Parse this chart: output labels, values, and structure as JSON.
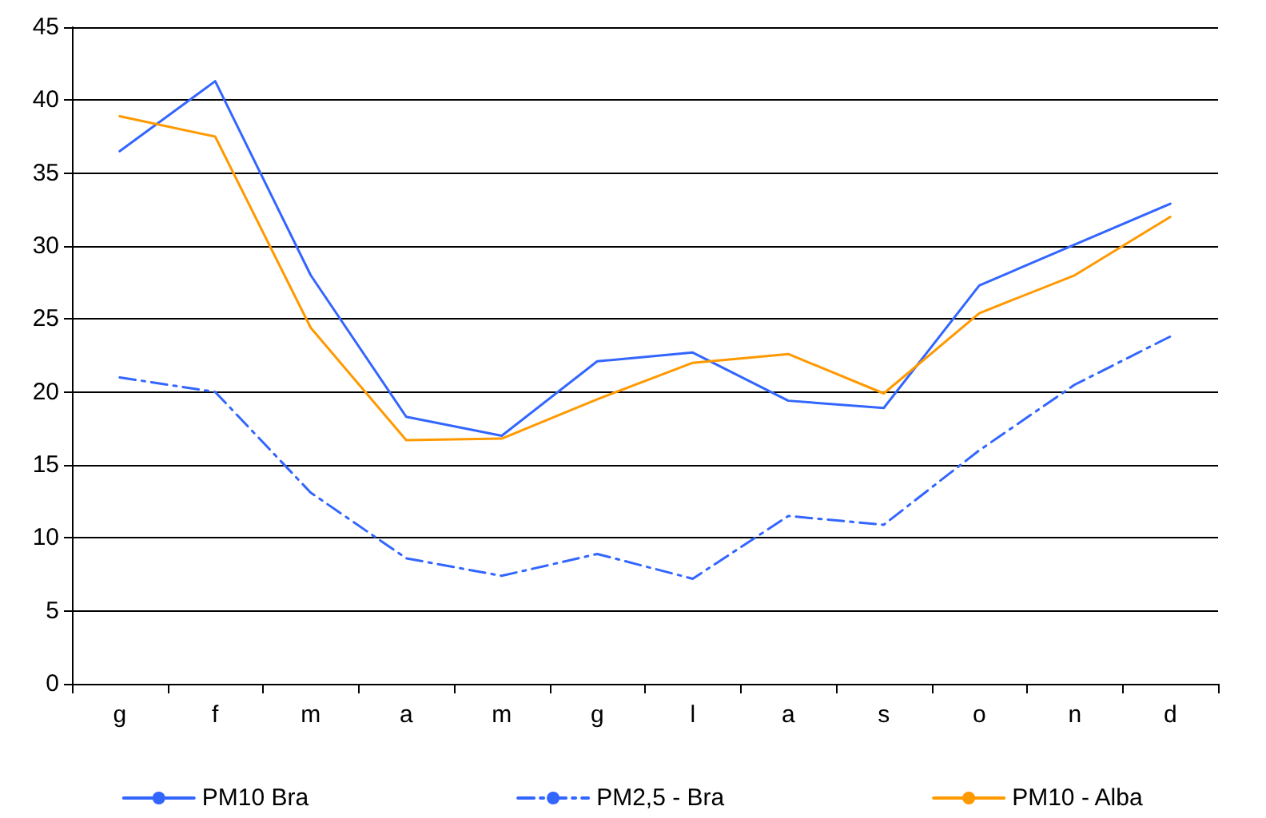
{
  "chart_data": {
    "type": "line",
    "categories": [
      "g",
      "f",
      "m",
      "a",
      "m",
      "g",
      "l",
      "a",
      "s",
      "o",
      "n",
      "d"
    ],
    "series": [
      {
        "name": "PM10 Bra",
        "color": "#3366ff",
        "line_style": "solid",
        "values": [
          36.5,
          41.3,
          28.0,
          18.3,
          17.0,
          22.1,
          22.7,
          19.4,
          18.9,
          27.3,
          30.1,
          32.9
        ]
      },
      {
        "name": "PM2,5 - Bra",
        "color": "#3366ff",
        "line_style": "dashed",
        "values": [
          21.0,
          20.0,
          13.1,
          8.6,
          7.4,
          8.9,
          7.2,
          11.5,
          10.9,
          16.0,
          20.5,
          23.8
        ]
      },
      {
        "name": "PM10 - Alba",
        "color": "#ff9900",
        "line_style": "solid",
        "values": [
          38.9,
          37.5,
          24.4,
          16.7,
          16.8,
          19.5,
          22.0,
          22.6,
          19.9,
          25.4,
          28.0,
          32.0
        ]
      }
    ],
    "ylim": [
      0,
      45
    ],
    "yticks": [
      0,
      5,
      10,
      15,
      20,
      25,
      30,
      35,
      40,
      45
    ],
    "grid": "y",
    "legend": "bottom",
    "marker": "none"
  }
}
